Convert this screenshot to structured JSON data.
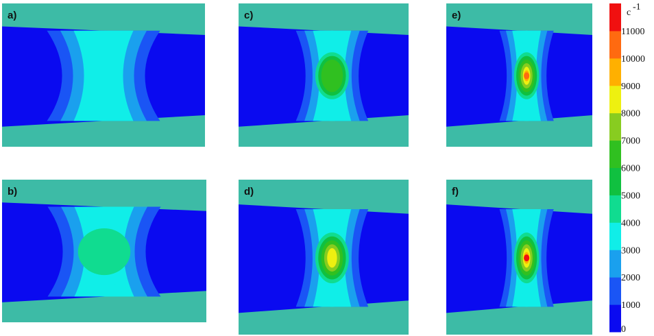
{
  "chart_data": {
    "type": "heatmap",
    "colorbar": {
      "unit": "c",
      "unit_exp": "-1",
      "ticks": [
        "0",
        "1000",
        "2000",
        "3000",
        "4000",
        "5000",
        "6000",
        "7000",
        "8000",
        "9000",
        "10000",
        "11000"
      ],
      "range": [
        0,
        12000
      ],
      "colors": [
        "#0a0af0",
        "#1a55f5",
        "#1aa0ee",
        "#10eee8",
        "#10dc90",
        "#10c040",
        "#30c020",
        "#88cc20",
        "#eef010",
        "#ffb000",
        "#ff6a10",
        "#f01010"
      ]
    },
    "background_color": "#3dbba6",
    "panels": [
      {
        "label": "a)",
        "peak_level": 4000
      },
      {
        "label": "c)",
        "peak_level": 7000
      },
      {
        "label": "e)",
        "peak_level": 11000
      },
      {
        "label": "b)",
        "peak_level": 5000
      },
      {
        "label": "d)",
        "peak_level": 9000
      },
      {
        "label": "f)",
        "peak_level": 12000
      }
    ]
  }
}
